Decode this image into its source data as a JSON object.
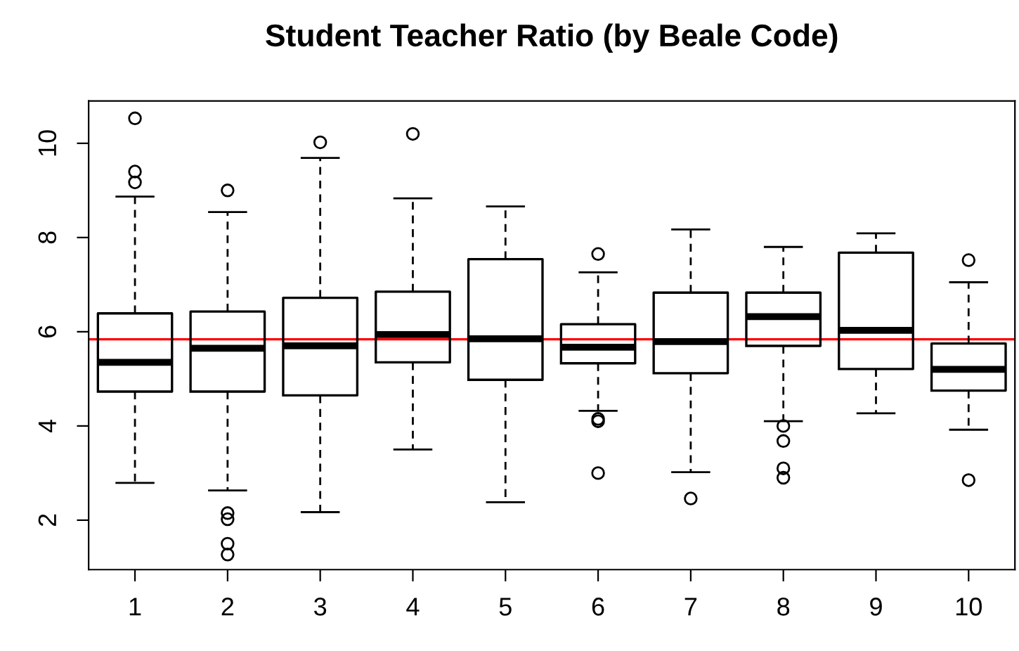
{
  "chart_data": {
    "type": "box",
    "title": "Student Teacher Ratio (by Beale Code)",
    "categories": [
      "1",
      "2",
      "3",
      "4",
      "5",
      "6",
      "7",
      "8",
      "9",
      "10"
    ],
    "boxes": [
      {
        "low": 2.79,
        "q1": 4.73,
        "median": 5.35,
        "q3": 6.39,
        "high": 8.87,
        "outliers": [
          10.53,
          9.4,
          9.17
        ]
      },
      {
        "low": 2.63,
        "q1": 4.73,
        "median": 5.65,
        "q3": 6.43,
        "high": 8.54,
        "outliers": [
          9.0,
          2.15,
          2.02,
          1.5,
          1.27
        ]
      },
      {
        "low": 2.17,
        "q1": 4.65,
        "median": 5.7,
        "q3": 6.72,
        "high": 9.69,
        "outliers": [
          10.02
        ]
      },
      {
        "low": 3.5,
        "q1": 5.35,
        "median": 5.94,
        "q3": 6.85,
        "high": 8.83,
        "outliers": [
          10.2
        ]
      },
      {
        "low": 2.38,
        "q1": 4.98,
        "median": 5.85,
        "q3": 7.54,
        "high": 8.66
      },
      {
        "low": 4.32,
        "q1": 5.33,
        "median": 5.67,
        "q3": 6.16,
        "high": 7.26,
        "outliers": [
          7.65,
          4.15,
          4.1,
          3.0
        ]
      },
      {
        "low": 3.02,
        "q1": 5.12,
        "median": 5.79,
        "q3": 6.83,
        "high": 8.17,
        "outliers": [
          2.46
        ]
      },
      {
        "low": 4.1,
        "q1": 5.7,
        "median": 6.32,
        "q3": 6.83,
        "high": 7.8,
        "outliers": [
          4.0,
          3.68,
          3.1,
          2.9
        ]
      },
      {
        "low": 4.27,
        "q1": 5.21,
        "median": 6.03,
        "q3": 7.68,
        "high": 8.09
      },
      {
        "low": 3.92,
        "q1": 4.75,
        "median": 5.2,
        "q3": 5.75,
        "high": 7.05,
        "outliers": [
          7.52,
          2.85
        ]
      }
    ],
    "ylim": [
      0.95,
      10.9
    ],
    "yticks": [
      2,
      4,
      6,
      8,
      10
    ],
    "grid": false,
    "ref_lines": [
      {
        "axis": "y",
        "value": 5.84,
        "color": "#ff0000"
      }
    ]
  }
}
